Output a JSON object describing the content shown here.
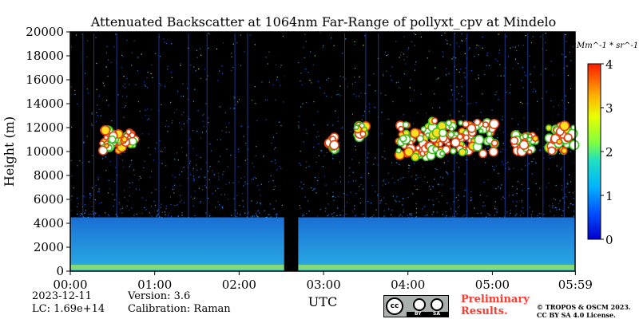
{
  "chart_data": {
    "type": "heatmap",
    "title": "Attenuated Backscatter at 1064nm Far-Range of pollyxt_cpv at Mindelo",
    "xlabel": "UTC",
    "ylabel": "Height (m)",
    "x_ticks": [
      "00:00",
      "01:00",
      "02:00",
      "03:00",
      "04:00",
      "05:00",
      "05:59"
    ],
    "y_ticks": [
      0,
      2000,
      4000,
      6000,
      8000,
      10000,
      12000,
      14000,
      16000,
      18000,
      20000
    ],
    "ylim": [
      0,
      20000
    ],
    "xlim_hours": [
      0,
      5.98
    ],
    "colorbar": {
      "label": "Mm^-1 * sr^-1",
      "ticks": [
        0,
        1,
        2,
        3,
        4
      ],
      "range": [
        0,
        4
      ],
      "colormap": "jet"
    },
    "features": {
      "boundary_layer_top_m": 4500,
      "data_gap_utc": [
        "02:32",
        "02:42"
      ],
      "cloud_layers": [
        {
          "start_utc": "00:22",
          "end_utc": "00:47",
          "base_m": 10000,
          "top_m": 12000
        },
        {
          "start_utc": "03:03",
          "end_utc": "03:10",
          "base_m": 10000,
          "top_m": 11200
        },
        {
          "start_utc": "03:23",
          "end_utc": "03:30",
          "base_m": 11200,
          "top_m": 12300
        },
        {
          "start_utc": "03:53",
          "end_utc": "04:17",
          "base_m": 9500,
          "top_m": 12300
        },
        {
          "start_utc": "04:17",
          "end_utc": "05:02",
          "base_m": 9800,
          "top_m": 12600
        },
        {
          "start_utc": "05:15",
          "end_utc": "05:32",
          "base_m": 9800,
          "top_m": 11400
        },
        {
          "start_utc": "05:40",
          "end_utc": "05:59",
          "base_m": 10000,
          "top_m": 12200
        }
      ]
    }
  },
  "footer": {
    "date": "2023-12-11",
    "version": "Version: 3.6",
    "lc": "LC: 1.69e+14",
    "calibration": "Calibration: Raman",
    "license_badge": [
      "BY",
      "SA"
    ],
    "preliminary": [
      "Preliminary",
      "Results."
    ],
    "copyright": [
      "© TROPOS & OSCM 2023.",
      "CC BY SA 4.0 License."
    ]
  },
  "colors": {
    "background": "#000000",
    "boundary_layer": "#1f7fd6",
    "noise": "#2a5fd0",
    "cloud_core": "#ffffff",
    "preliminary_text": "#ff3b30"
  }
}
